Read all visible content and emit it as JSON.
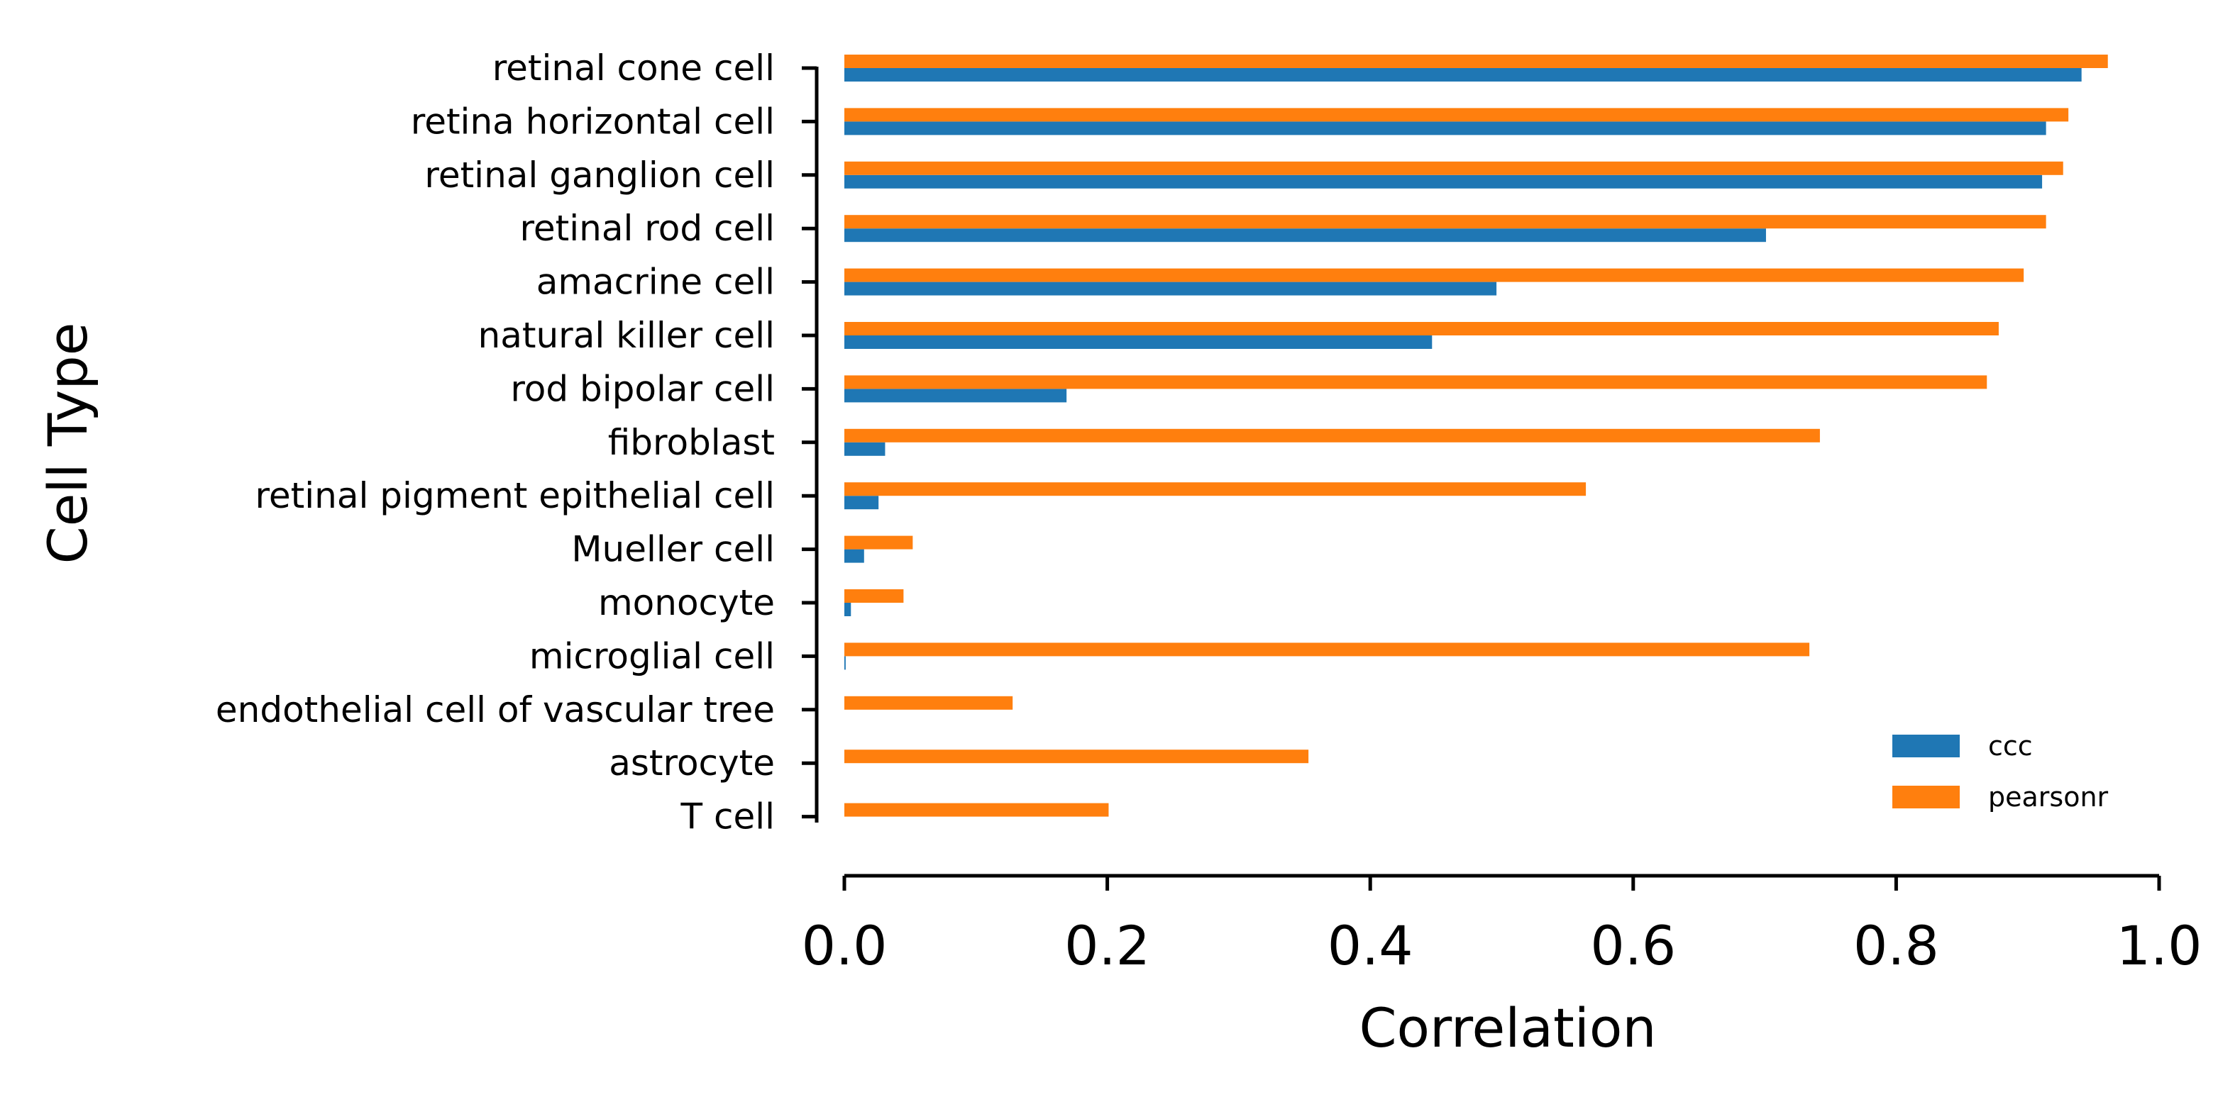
{
  "chart_data": {
    "type": "bar",
    "orientation": "horizontal",
    "title": "",
    "xlabel": "Correlation",
    "ylabel": "Cell Type",
    "xlim": [
      0,
      1.0
    ],
    "xticks": [
      "0.0",
      "0.2",
      "0.4",
      "0.6",
      "0.8",
      "1.0"
    ],
    "grid": false,
    "legend_position": "lower-right",
    "categories": [
      "retinal cone cell",
      "retina horizontal cell",
      "retinal ganglion cell",
      "retinal rod cell",
      "amacrine cell",
      "natural killer cell",
      "rod bipolar cell",
      "fibroblast",
      "retinal pigment epithelial cell",
      "Mueller cell",
      "monocyte",
      "microglial cell",
      "endothelial cell of vascular tree",
      "astrocyte",
      "T cell"
    ],
    "series": [
      {
        "name": "ccc",
        "color": "#1f77b4",
        "values": [
          0.941,
          0.914,
          0.911,
          0.701,
          0.496,
          0.447,
          0.169,
          0.031,
          0.026,
          0.015,
          0.005,
          0.001,
          0.0,
          0.0,
          0.0
        ]
      },
      {
        "name": "pearsonr",
        "color": "#ff7f0e",
        "values": [
          0.961,
          0.931,
          0.927,
          0.914,
          0.897,
          0.878,
          0.869,
          0.742,
          0.564,
          0.052,
          0.045,
          0.734,
          0.128,
          0.353,
          0.201
        ]
      }
    ]
  }
}
